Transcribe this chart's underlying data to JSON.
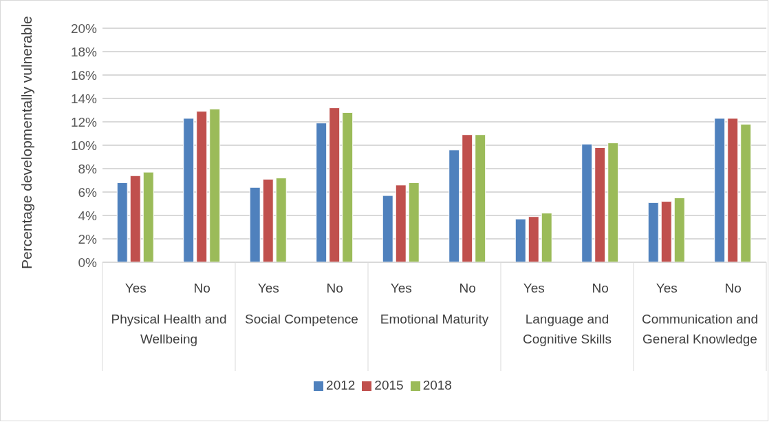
{
  "chart_data": {
    "type": "bar",
    "ylabel": "Percentage developmentally vulnerable",
    "categories": [
      "Yes",
      "No",
      "Yes",
      "No",
      "Yes",
      "No",
      "Yes",
      "No",
      "Yes",
      "No"
    ],
    "annotations": [
      "Physical Health and Wellbeing",
      "Social Competence",
      "Emotional Maturity",
      "Language and Cognitive Skills",
      "Communication and General Knowledge"
    ],
    "series": [
      {
        "name": "2012",
        "color": "#4f81bd",
        "values": [
          6.8,
          12.3,
          6.4,
          11.9,
          5.7,
          9.6,
          3.7,
          10.1,
          5.1,
          12.3
        ]
      },
      {
        "name": "2015",
        "color": "#c0504d",
        "values": [
          7.4,
          12.9,
          7.1,
          13.2,
          6.6,
          10.9,
          3.9,
          9.8,
          5.2,
          12.3
        ]
      },
      {
        "name": "2018",
        "color": "#9bbb59",
        "values": [
          7.7,
          13.1,
          7.2,
          12.8,
          6.8,
          10.9,
          4.2,
          10.2,
          5.5,
          11.8
        ]
      }
    ],
    "ylim": [
      0,
      20
    ],
    "yticks": [
      {
        "value": 0,
        "label": "0%"
      },
      {
        "value": 2,
        "label": "2%"
      },
      {
        "value": 4,
        "label": "4%"
      },
      {
        "value": 6,
        "label": "6%"
      },
      {
        "value": 8,
        "label": "8%"
      },
      {
        "value": 10,
        "label": "10%"
      },
      {
        "value": 12,
        "label": "12%"
      },
      {
        "value": 14,
        "label": "14%"
      },
      {
        "value": 16,
        "label": "16%"
      },
      {
        "value": 18,
        "label": "18%"
      },
      {
        "value": 20,
        "label": "20%"
      }
    ],
    "grid": "y",
    "legend": "bottom"
  }
}
